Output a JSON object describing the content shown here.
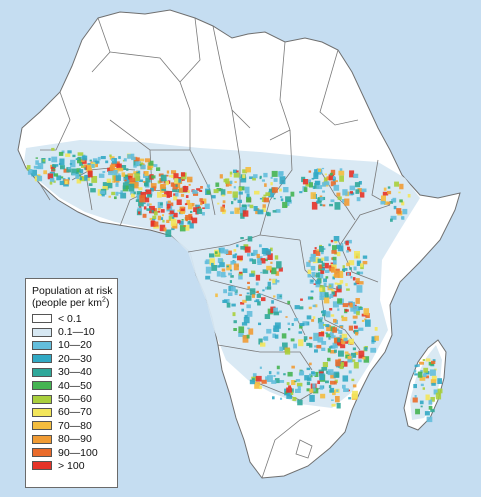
{
  "legend": {
    "title_line1": "Population at risk",
    "title_line2_prefix": "(people per km",
    "title_sup": "2",
    "title_line2_suffix": ")",
    "items": [
      {
        "label": "< 0.1",
        "color": "#ffffff"
      },
      {
        "label": "0.1—10",
        "color": "#d7e8f3"
      },
      {
        "label": "10—20",
        "color": "#63bedc"
      },
      {
        "label": "20—30",
        "color": "#31a9c4"
      },
      {
        "label": "30—40",
        "color": "#2fa89a"
      },
      {
        "label": "40—50",
        "color": "#45b452"
      },
      {
        "label": "50—60",
        "color": "#a9cf3c"
      },
      {
        "label": "60—70",
        "color": "#f3e65a"
      },
      {
        "label": "70—80",
        "color": "#f4bd3e"
      },
      {
        "label": "80—90",
        "color": "#f09b34"
      },
      {
        "label": "90—100",
        "color": "#ea6b2a"
      },
      {
        "label": "> 100",
        "color": "#e53328"
      }
    ]
  },
  "colors": {
    "ocean": "#c5ddf1",
    "land": "#ffffff",
    "border": "#7a7a7a"
  }
}
